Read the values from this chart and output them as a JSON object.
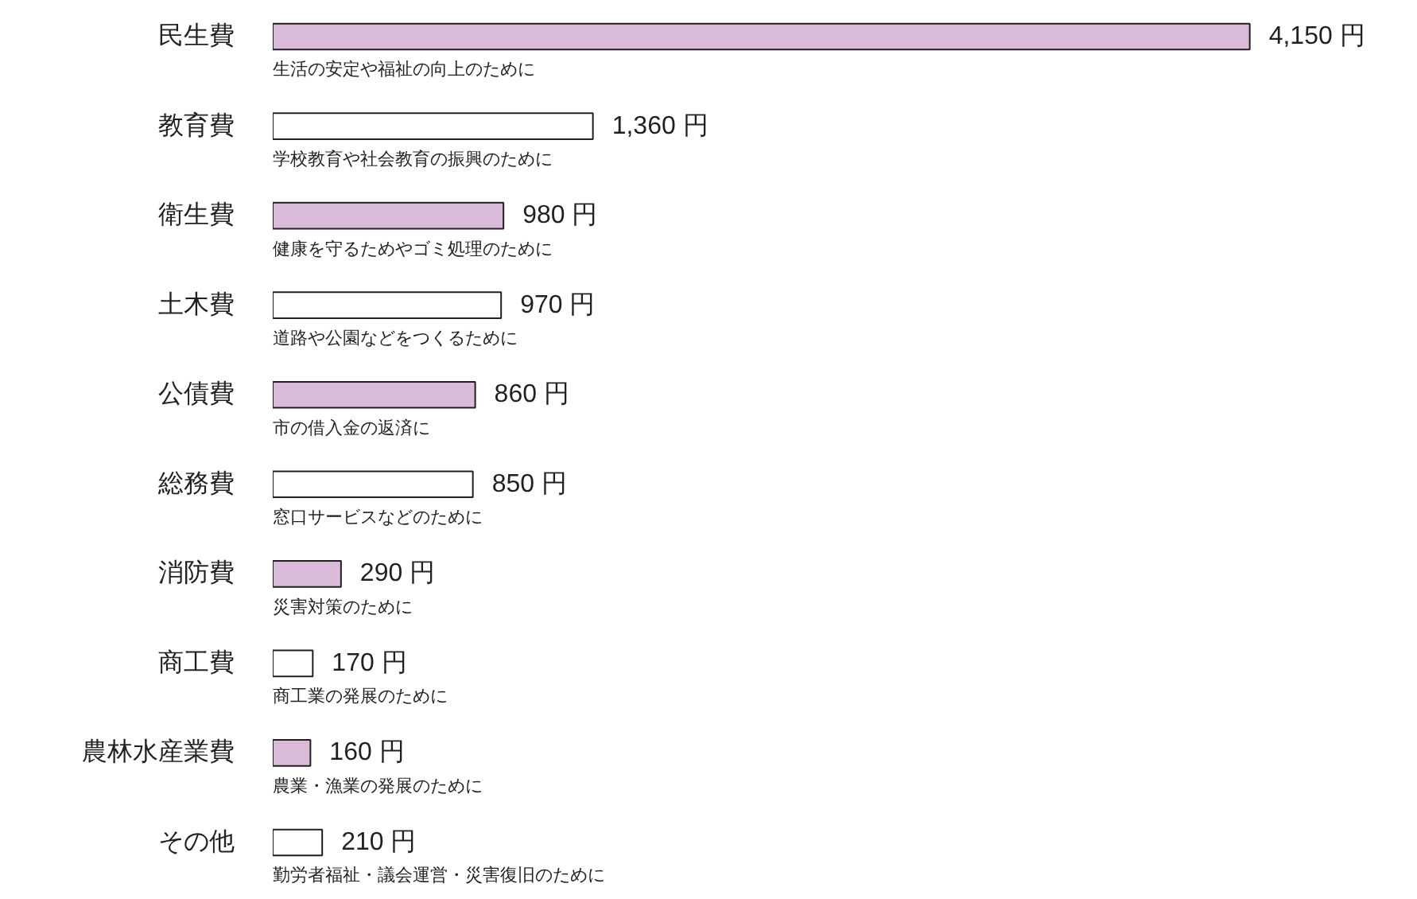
{
  "chart_data": {
    "type": "bar",
    "orientation": "horizontal",
    "categories": [
      "民生費",
      "教育費",
      "衛生費",
      "土木費",
      "公債費",
      "総務費",
      "消防費",
      "商工費",
      "農林水産業費",
      "その他"
    ],
    "values": [
      4150,
      1360,
      980,
      970,
      860,
      850,
      290,
      170,
      160,
      210
    ],
    "colors": [
      "#d9bbd9",
      "#ffffff",
      "#d9bbd9",
      "#ffffff",
      "#d9bbd9",
      "#ffffff",
      "#d9bbd9",
      "#ffffff",
      "#d9bbd9",
      "#ffffff"
    ],
    "value_labels": [
      "4,150 円",
      "1,360 円",
      "980 円",
      "970 円",
      "860 円",
      "850 円",
      "290 円",
      "170 円",
      "160 円",
      "210 円"
    ],
    "annotations": [
      "生活の安定や福祉の向上のために",
      "学校教育や社会教育の振興のために",
      "健康を守るためやゴミ処理のために",
      "道路や公園などをつくるために",
      "市の借入金の返済に",
      "窓口サービスなどのために",
      "災害対策のために",
      "商工業の発展のために",
      "農業・漁業の発展のために",
      "勤労者福祉・議会運営・災害復旧のために"
    ],
    "grid": false
  }
}
